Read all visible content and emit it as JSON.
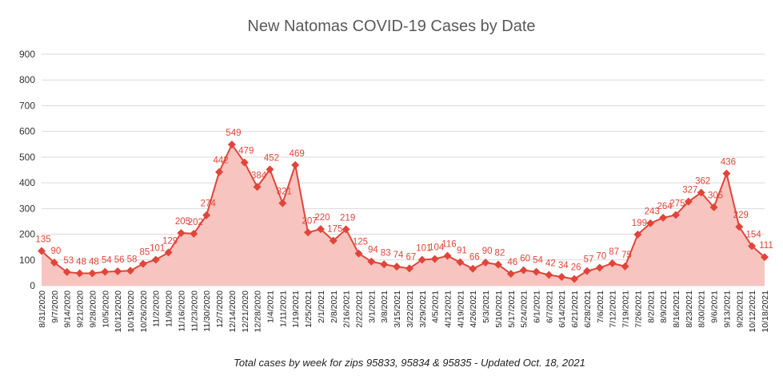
{
  "chart_data": {
    "type": "area",
    "title": "New Natomas COVID-19 Cases by Date",
    "note": "Total cases by week for zips 95833, 95834 & 95835 - Updated Oct. 18, 2021",
    "xlabel": "",
    "ylabel": "",
    "ylim": [
      0,
      900
    ],
    "yticks": [
      0,
      100,
      200,
      300,
      400,
      500,
      600,
      700,
      800,
      900
    ],
    "grid": true,
    "legend": "none",
    "colors": {
      "line": "#e0453a",
      "fill": "#f7c4bf",
      "grid": "#d9d9d9"
    },
    "categories": [
      "8/31/2020",
      "9/7/2020",
      "9/14/2020",
      "9/21/2020",
      "9/28/2020",
      "10/5/2020",
      "10/12/2020",
      "10/19/2020",
      "10/26/2020",
      "11/2/2020",
      "11/9/2020",
      "11/16/2020",
      "11/23/2020",
      "11/30/2020",
      "12/7/2020",
      "12/14/2020",
      "12/21/2020",
      "12/28/2020",
      "1/4/2021",
      "1/11/2021",
      "1/19/2021",
      "1/25/2021",
      "2/1/2021",
      "2/8/2021",
      "2/16/2021",
      "2/22/2021",
      "3/1/2021",
      "3/8/2021",
      "3/15/2021",
      "3/22/2021",
      "3/29/2021",
      "4/5/2021",
      "4/12/2021",
      "4/19/2021",
      "4/26/2021",
      "5/3/2021",
      "5/10/2021",
      "5/17/2021",
      "5/24/2021",
      "6/1/2021",
      "6/7/2021",
      "6/14/2021",
      "6/21/2021",
      "6/28/2021",
      "7/6/2021",
      "7/12/2021",
      "7/19/2021",
      "7/26/2021",
      "8/2/2021",
      "8/9/2021",
      "8/16/2021",
      "8/23/2021",
      "8/30/2021",
      "9/6/2021",
      "9/13/2021",
      "9/20/2021",
      "10/12/2021",
      "10/18/2021"
    ],
    "series": [
      {
        "values": [
          135,
          90,
          53,
          48,
          48,
          54,
          56,
          58,
          85,
          101,
          129,
          205,
          202,
          274,
          442,
          549,
          479,
          384,
          452,
          321,
          469,
          207,
          220,
          175,
          219,
          125,
          94,
          83,
          74,
          67,
          101,
          104,
          116,
          91,
          66,
          90,
          82,
          46,
          60,
          54,
          42,
          34,
          26,
          57,
          70,
          87,
          75,
          199,
          243,
          264,
          275,
          327,
          362,
          305,
          436,
          229,
          154,
          111
        ],
        "labels": [
          "135",
          "90",
          "53",
          "48",
          "48",
          "54",
          "56",
          "58",
          "85",
          "101",
          "129",
          "205",
          "202",
          "274",
          "442",
          "549",
          "479",
          "384",
          "452",
          "321",
          "469",
          "207",
          "220",
          "175",
          "219",
          "125",
          "94",
          "83",
          "74",
          "67",
          "101",
          "104",
          "116",
          "91",
          "66",
          "90",
          "82",
          "46",
          "60",
          "54",
          "42",
          "34",
          "26",
          "57",
          "70",
          "87",
          "75",
          "199",
          "243",
          "264",
          "275",
          "327",
          "362",
          "305",
          "436",
          "229",
          "154",
          "111"
        ]
      }
    ]
  }
}
